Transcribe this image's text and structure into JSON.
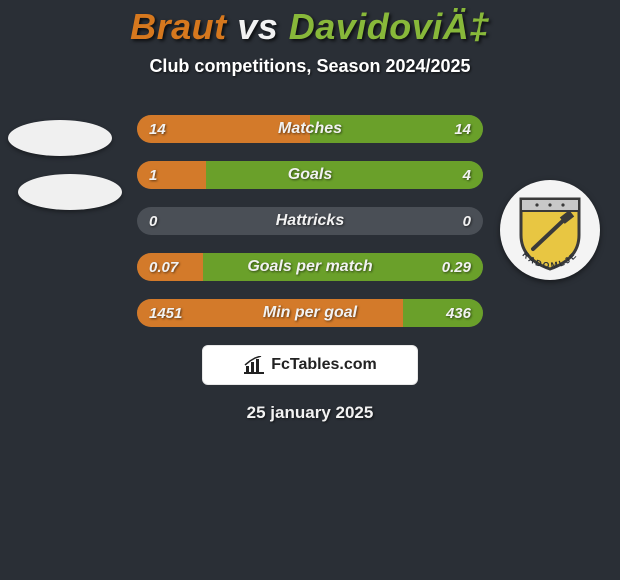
{
  "colors": {
    "page_bg": "#2a2f36",
    "text_light": "#f2f2f2",
    "subtitle": "#ffffff",
    "row_bg": "#4a4f56",
    "left_fill": "#d37a2a",
    "right_fill": "#6aa02a",
    "attribution_bg": "#ffffff",
    "attribution_text": "#222222",
    "attribution_border": "#e8e8e8",
    "badge_bg": "#f0f0f0",
    "club_circle_bg": "#f4f4f4"
  },
  "title": {
    "player1": "Braut",
    "vs": "vs",
    "player2": "DavidoviÄ‡",
    "color1": "#d6781e",
    "vs_color": "#f2f2f2",
    "color2": "#88b83a"
  },
  "subtitle": "Club competitions, Season 2024/2025",
  "rows": [
    {
      "label": "Matches",
      "left_val": "14",
      "right_val": "14",
      "left_pct": 50,
      "right_pct": 50
    },
    {
      "label": "Goals",
      "left_val": "1",
      "right_val": "4",
      "left_pct": 20,
      "right_pct": 80
    },
    {
      "label": "Hattricks",
      "left_val": "0",
      "right_val": "0",
      "left_pct": 0,
      "right_pct": 0
    },
    {
      "label": "Goals per match",
      "left_val": "0.07",
      "right_val": "0.29",
      "left_pct": 19,
      "right_pct": 81
    },
    {
      "label": "Min per goal",
      "left_val": "1451",
      "right_val": "436",
      "left_pct": 77,
      "right_pct": 23
    }
  ],
  "attribution_text": "FcTables.com",
  "date_text": "25 january 2025",
  "club_badge": {
    "shield_fill": "#e8c642",
    "shield_stroke": "#3a3a3a",
    "top_band": "#c8c8c8",
    "arc_text": "RADOMLJE"
  }
}
